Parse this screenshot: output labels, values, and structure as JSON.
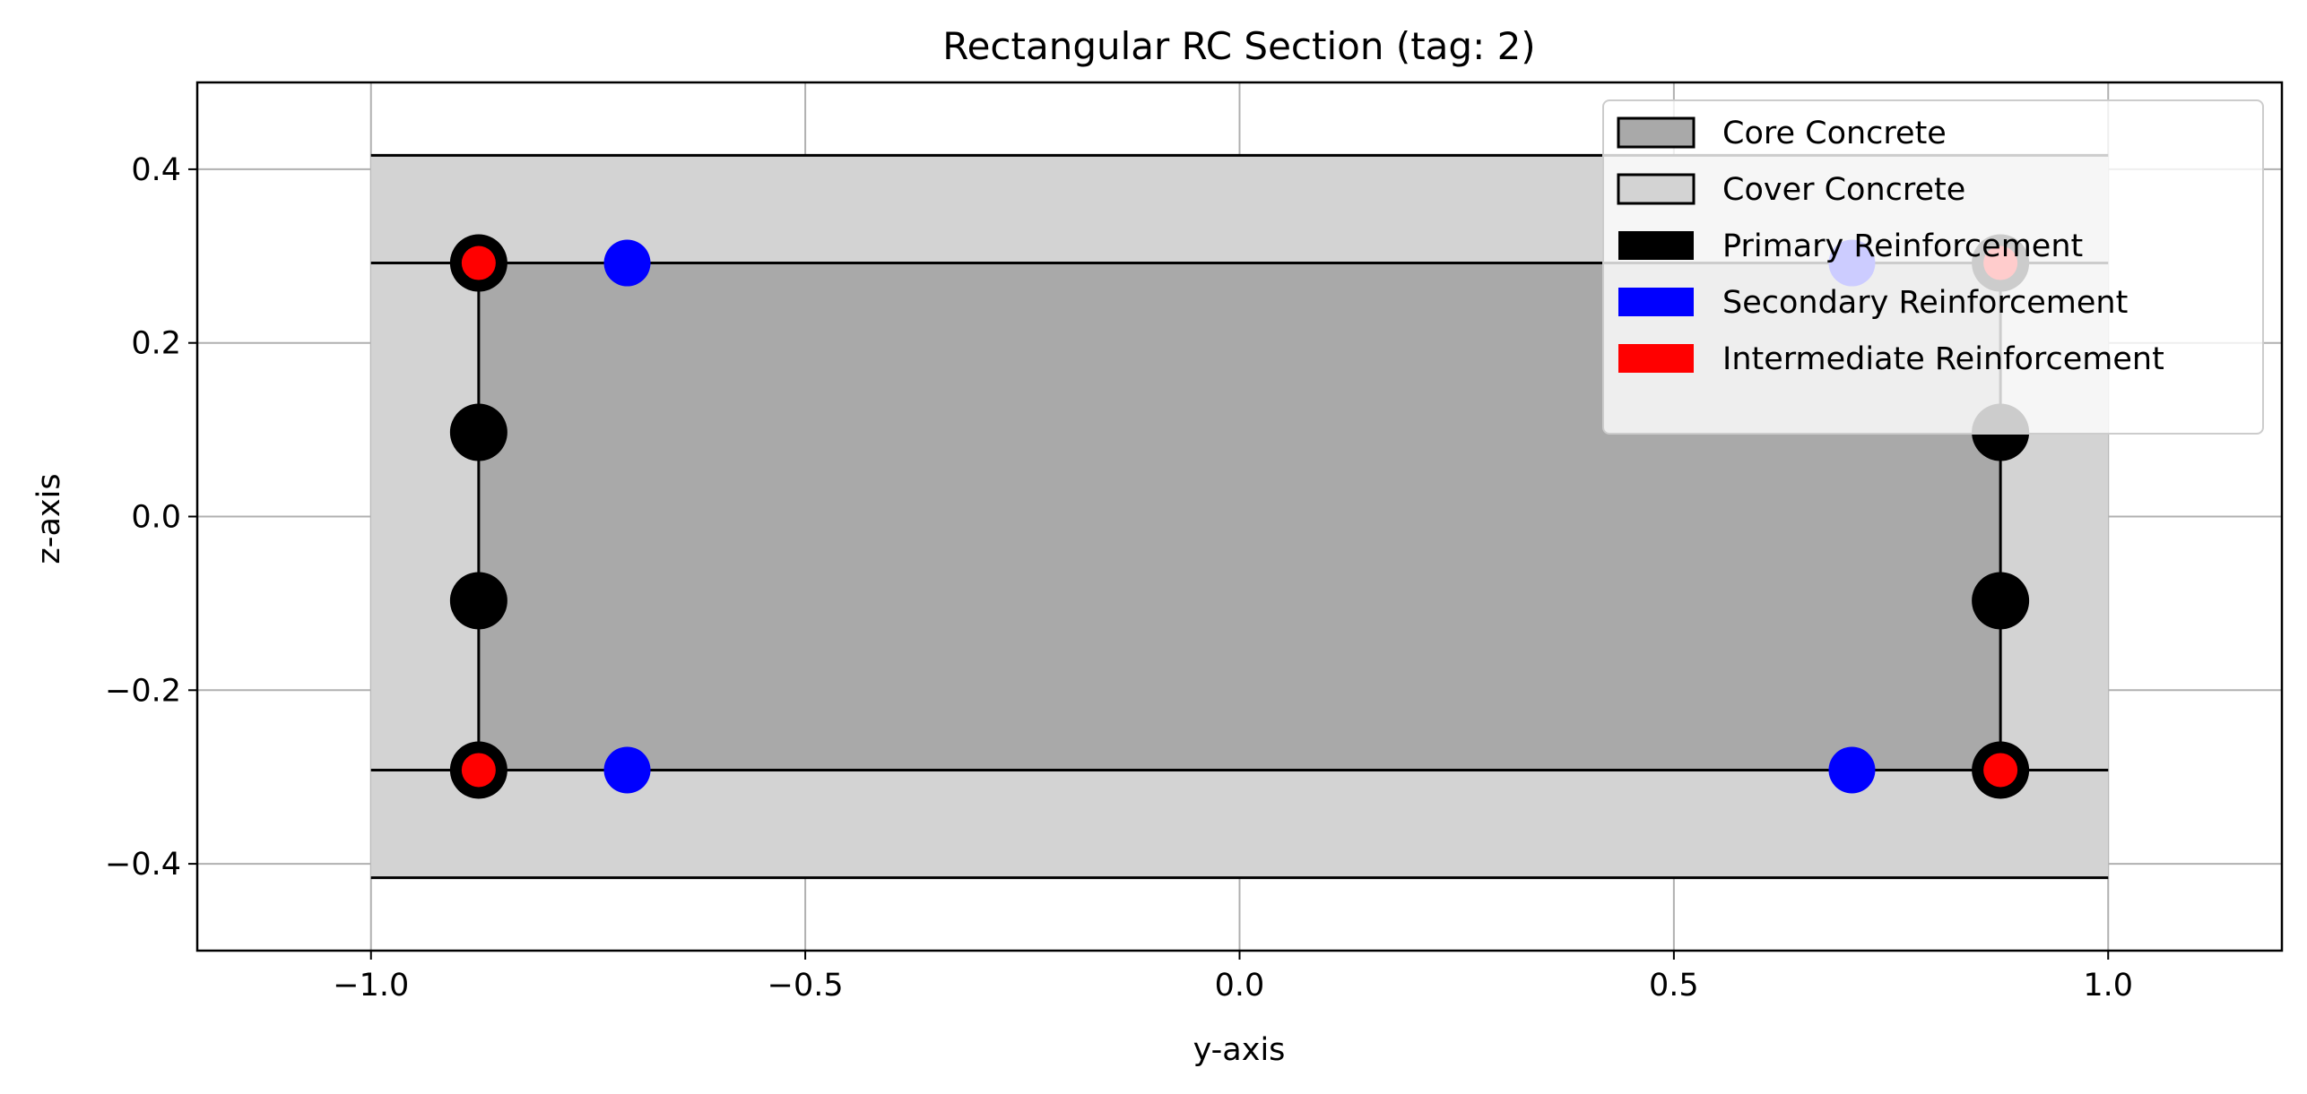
{
  "chart_data": {
    "type": "scatter",
    "title": "Rectangular RC Section (tag: 2)",
    "xlabel": "y-axis",
    "ylabel": "z-axis",
    "xlim": [
      -1.2,
      1.2
    ],
    "ylim": [
      -0.5,
      0.5
    ],
    "x_ticks": [
      -1.0,
      -0.5,
      0.0,
      0.5,
      1.0
    ],
    "x_tick_labels": [
      "−1.0",
      "−0.5",
      "0.0",
      "0.5",
      "1.0"
    ],
    "y_ticks": [
      -0.4,
      -0.2,
      0.0,
      0.2,
      0.4
    ],
    "y_tick_labels": [
      "−0.4",
      "−0.2",
      "0.0",
      "0.2",
      "0.4"
    ],
    "grid": true,
    "legend_position": "top-right",
    "regions": [
      {
        "name": "Cover Concrete",
        "y": [
          -1.0,
          1.0
        ],
        "z": [
          -0.416,
          0.416
        ],
        "color": "#d3d3d3"
      },
      {
        "name": "Core Concrete",
        "y": [
          -0.876,
          0.876
        ],
        "z": [
          -0.292,
          0.292
        ],
        "color": "#a9a9a9"
      }
    ],
    "series": [
      {
        "name": "Primary Reinforcement",
        "color": "#000000",
        "marker_size": "large",
        "points": [
          [
            -0.876,
            0.292
          ],
          [
            -0.876,
            0.097
          ],
          [
            -0.876,
            -0.097
          ],
          [
            -0.876,
            -0.292
          ],
          [
            0.876,
            0.292
          ],
          [
            0.876,
            0.097
          ],
          [
            0.876,
            -0.097
          ],
          [
            0.876,
            -0.292
          ]
        ]
      },
      {
        "name": "Secondary Reinforcement",
        "color": "#0000ff",
        "marker_size": "medium",
        "points": [
          [
            -0.705,
            0.292
          ],
          [
            0.705,
            0.292
          ],
          [
            -0.705,
            -0.292
          ],
          [
            0.705,
            -0.292
          ]
        ]
      },
      {
        "name": "Intermediate Reinforcement",
        "color": "#ff0000",
        "marker_size": "small",
        "points": [
          [
            -0.876,
            0.292
          ],
          [
            0.876,
            0.292
          ],
          [
            -0.876,
            -0.292
          ],
          [
            0.876,
            -0.292
          ]
        ]
      }
    ],
    "legend": [
      {
        "label": "Core Concrete",
        "color": "#a9a9a9",
        "outlined": true
      },
      {
        "label": "Cover Concrete",
        "color": "#d3d3d3",
        "outlined": true
      },
      {
        "label": "Primary Reinforcement",
        "color": "#000000",
        "outlined": false
      },
      {
        "label": "Secondary Reinforcement",
        "color": "#0000ff",
        "outlined": false
      },
      {
        "label": "Intermediate Reinforcement",
        "color": "#ff0000",
        "outlined": false
      }
    ]
  }
}
